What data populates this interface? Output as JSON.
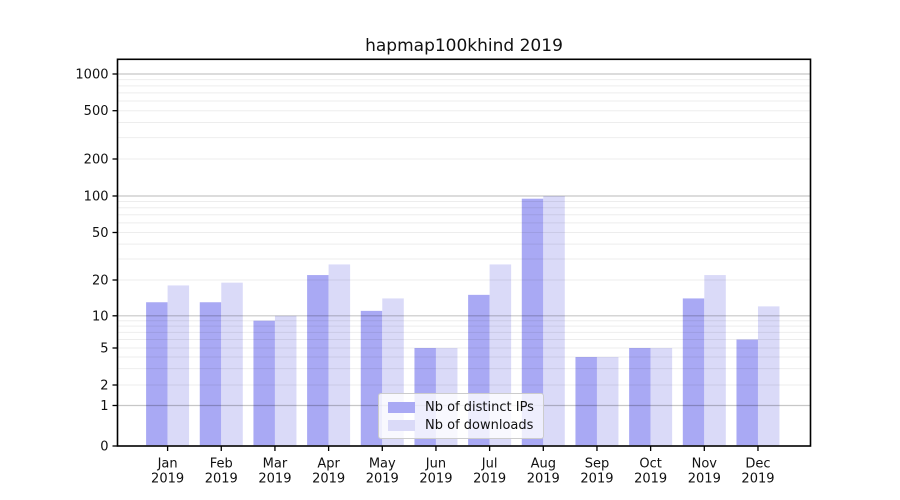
{
  "chart_data": {
    "type": "bar",
    "title": "hapmap100khind 2019",
    "categories": [
      "Jan",
      "Feb",
      "Mar",
      "Apr",
      "May",
      "Jun",
      "Jul",
      "Aug",
      "Sep",
      "Oct",
      "Nov",
      "Dec"
    ],
    "category_year": "2019",
    "series": [
      {
        "name": "Nb of distinct IPs",
        "color": "#a9a9f4",
        "values": [
          13,
          13,
          9,
          22,
          11,
          5,
          15,
          95,
          4,
          5,
          14,
          6
        ]
      },
      {
        "name": "Nb of downloads",
        "color": "#dadaf8",
        "values": [
          18,
          19,
          10,
          27,
          14,
          5,
          27,
          100,
          4,
          5,
          22,
          12
        ]
      }
    ],
    "yaxis": {
      "scale": "symlog",
      "ticks": [
        0,
        1,
        2,
        5,
        10,
        20,
        50,
        100,
        200,
        500,
        1000
      ],
      "major_gridlines": [
        1,
        10,
        100,
        1000
      ],
      "minor_gridlines": [
        2,
        3,
        4,
        5,
        6,
        7,
        8,
        9,
        20,
        30,
        40,
        50,
        60,
        70,
        80,
        90,
        200,
        300,
        400,
        500,
        600,
        700,
        800,
        900
      ],
      "ylim": [
        0,
        1300
      ]
    },
    "xaxis": {
      "tick_label_line2": "2019"
    },
    "legend": {
      "position": "lower-center"
    },
    "grid": "on",
    "colors": {
      "text": "#111111",
      "spine": "#000000",
      "major_grid": "rgba(0,0,0,0.22)",
      "minor_grid": "rgba(0,0,0,0.07)"
    }
  }
}
